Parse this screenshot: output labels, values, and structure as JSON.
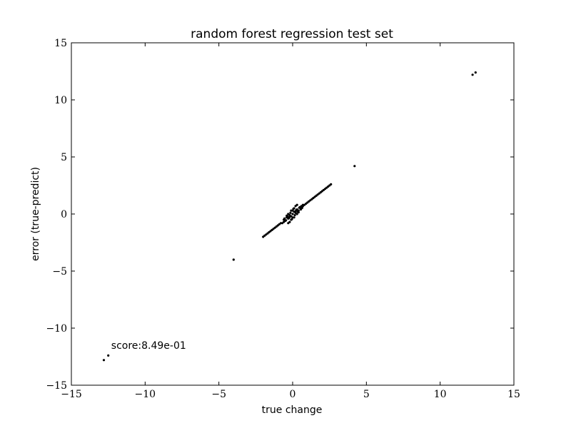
{
  "chart_data": {
    "type": "scatter",
    "title": "random forest regression test set",
    "xlabel": "true change",
    "ylabel": "error (true-predict)",
    "xlim": [
      -15,
      15
    ],
    "ylim": [
      -15,
      15
    ],
    "xticks": [
      -15,
      -10,
      -5,
      0,
      5,
      10,
      15
    ],
    "yticks": [
      -15,
      -10,
      -5,
      0,
      5,
      10,
      15
    ],
    "xtick_labels": [
      "−15",
      "−10",
      "−5",
      "0",
      "5",
      "10",
      "15"
    ],
    "ytick_labels": [
      "−15",
      "−10",
      "−5",
      "0",
      "5",
      "10",
      "15"
    ],
    "annotation": {
      "text": "score:8.49e-01",
      "x": -12.3,
      "y": -11.8
    },
    "grid": false,
    "marker_color": "#000000",
    "points": [
      [
        -12.8,
        -12.8
      ],
      [
        -12.5,
        -12.4
      ],
      [
        -4.0,
        -4.0
      ],
      [
        4.2,
        4.2
      ],
      [
        12.2,
        12.2
      ],
      [
        12.4,
        12.4
      ],
      [
        2.6,
        2.6
      ],
      [
        2.5,
        2.5
      ],
      [
        2.4,
        2.4
      ],
      [
        2.3,
        2.3
      ],
      [
        2.2,
        2.2
      ],
      [
        2.1,
        2.1
      ],
      [
        2.0,
        2.0
      ],
      [
        1.9,
        1.9
      ],
      [
        1.8,
        1.8
      ],
      [
        1.7,
        1.7
      ],
      [
        1.6,
        1.6
      ],
      [
        1.5,
        1.5
      ],
      [
        1.4,
        1.4
      ],
      [
        1.3,
        1.3
      ],
      [
        1.2,
        1.2
      ],
      [
        1.1,
        1.1
      ],
      [
        1.0,
        1.0
      ],
      [
        0.9,
        0.9
      ],
      [
        0.8,
        0.8
      ],
      [
        0.7,
        0.7
      ],
      [
        -2.0,
        -2.0
      ],
      [
        -1.9,
        -1.9
      ],
      [
        -1.8,
        -1.8
      ],
      [
        -1.7,
        -1.7
      ],
      [
        -1.6,
        -1.6
      ],
      [
        -1.5,
        -1.5
      ],
      [
        -1.4,
        -1.4
      ],
      [
        -1.3,
        -1.3
      ],
      [
        -1.2,
        -1.2
      ],
      [
        -1.1,
        -1.1
      ],
      [
        -1.0,
        -1.0
      ],
      [
        -0.9,
        -0.9
      ],
      [
        -0.8,
        -0.8
      ],
      [
        0.0,
        0.0
      ],
      [
        0.1,
        0.2
      ],
      [
        -0.1,
        -0.2
      ],
      [
        0.2,
        0.1
      ],
      [
        -0.2,
        -0.1
      ],
      [
        0.3,
        0.4
      ],
      [
        -0.3,
        -0.4
      ],
      [
        0.4,
        0.3
      ],
      [
        -0.4,
        -0.3
      ],
      [
        0.5,
        0.6
      ],
      [
        -0.5,
        -0.6
      ],
      [
        0.6,
        0.5
      ],
      [
        -0.6,
        -0.5
      ],
      [
        0.1,
        0.5
      ],
      [
        -0.1,
        -0.5
      ],
      [
        0.2,
        0.7
      ],
      [
        -0.2,
        -0.7
      ],
      [
        0.3,
        0.0
      ],
      [
        -0.3,
        0.0
      ],
      [
        0.0,
        0.3
      ],
      [
        0.0,
        -0.3
      ],
      [
        0.15,
        -0.1
      ],
      [
        -0.15,
        0.1
      ],
      [
        0.35,
        0.2
      ],
      [
        -0.35,
        -0.2
      ],
      [
        0.45,
        0.55
      ],
      [
        -0.45,
        -0.55
      ],
      [
        0.05,
        0.45
      ],
      [
        -0.05,
        -0.45
      ],
      [
        0.25,
        0.35
      ],
      [
        -0.25,
        -0.35
      ],
      [
        0.55,
        0.4
      ],
      [
        -0.55,
        -0.4
      ],
      [
        0.1,
        -0.3
      ],
      [
        -0.1,
        0.3
      ],
      [
        0.3,
        0.8
      ],
      [
        -0.3,
        -0.8
      ],
      [
        0.6,
        0.7
      ],
      [
        -0.6,
        -0.7
      ],
      [
        0.2,
        0.25
      ],
      [
        -0.2,
        -0.25
      ],
      [
        0.4,
        0.15
      ],
      [
        -0.4,
        -0.15
      ],
      [
        0.7,
        0.8
      ],
      [
        -0.7,
        -0.8
      ],
      [
        0.65,
        0.55
      ]
    ]
  }
}
